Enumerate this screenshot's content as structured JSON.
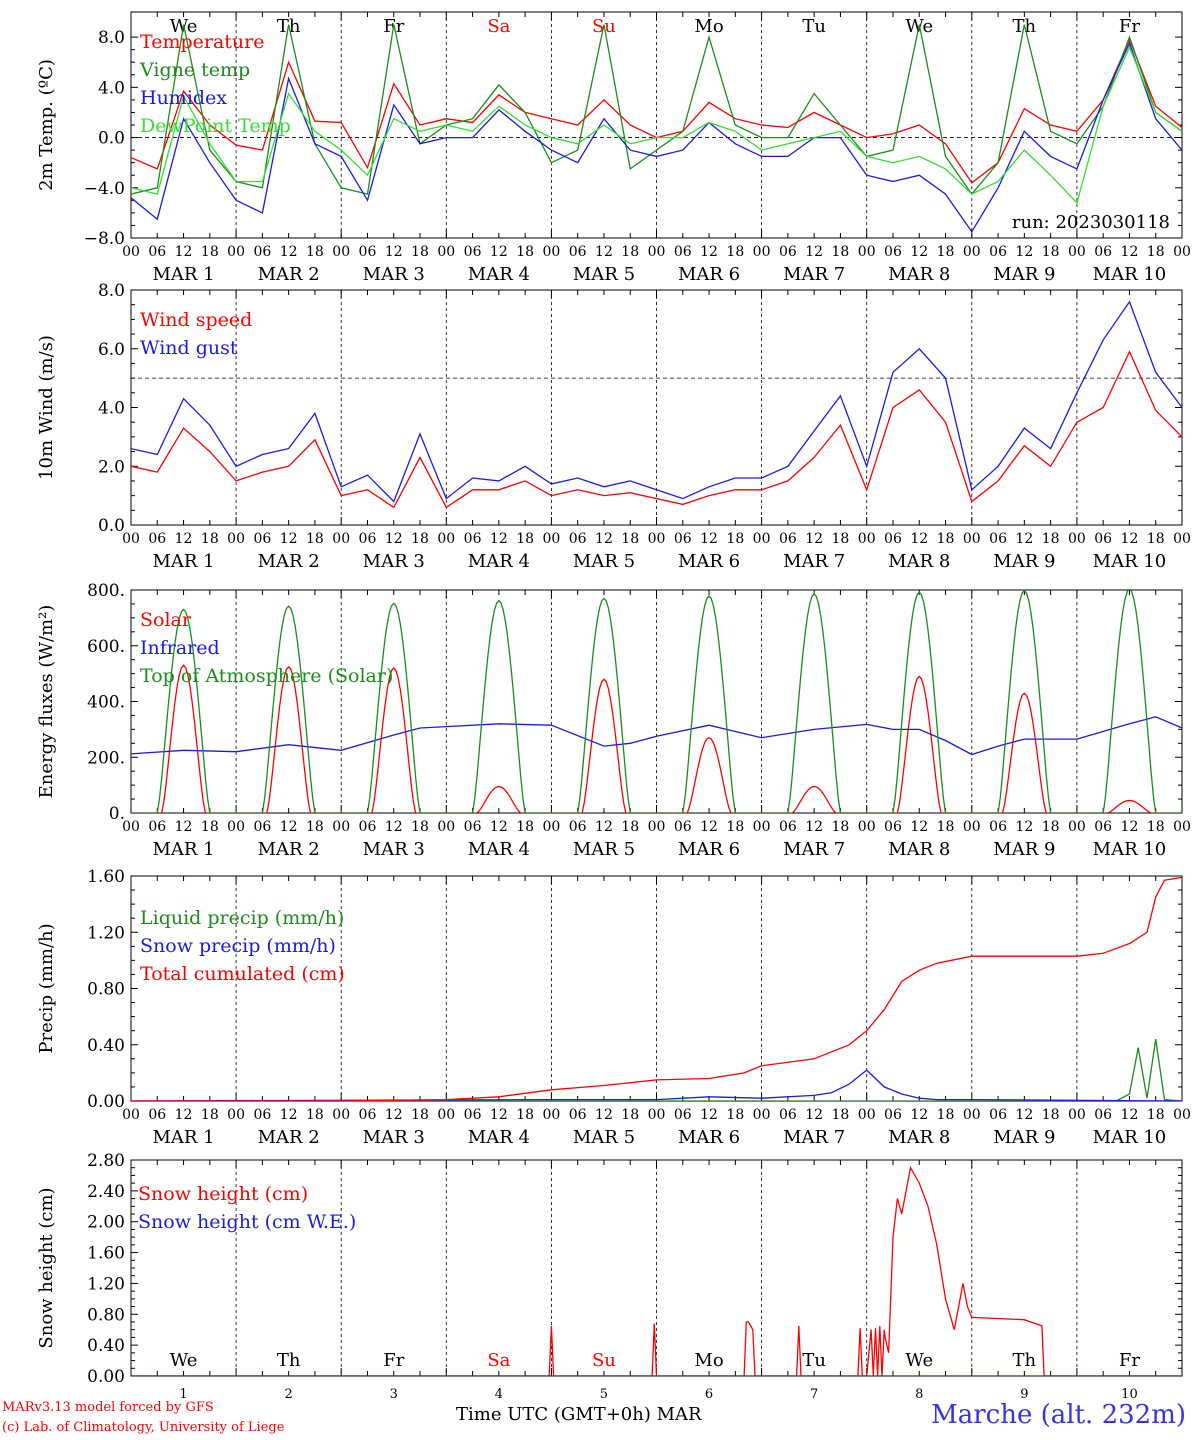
{
  "footer": {
    "model_line": "MARv3.13 model forced by GFS",
    "copyright_line": "(c) Lab. of Climatology, University of Liege",
    "xlabel": "Time UTC (GMT+0h) MAR",
    "station": "Marche (alt. 232m)"
  },
  "colors": {
    "red": "#ff0000",
    "blue": "#1a1ae6",
    "green": "#1a8c1a",
    "lightgreen": "#33dd33",
    "black": "#000000"
  },
  "chart_data": [
    {
      "type": "line",
      "ylabel": "2m Temp. (ºC)",
      "ylim": [
        -8,
        10
      ],
      "yticks": [
        -8,
        -4,
        0,
        4,
        8
      ],
      "ytick_labels": [
        "−8.0",
        "−4.0",
        "0.0",
        "4.0",
        "8.0"
      ],
      "ref_line": 0,
      "day_labels": [
        "We",
        "Th",
        "Fr",
        "Sa",
        "Su",
        "Mo",
        "Tu",
        "We",
        "Th",
        "Fr"
      ],
      "weekend_days": [
        3,
        4
      ],
      "date_labels": [
        "MAR  1",
        "MAR  2",
        "MAR  3",
        "MAR  4",
        "MAR  5",
        "MAR  6",
        "MAR  7",
        "MAR  8",
        "MAR  9",
        "MAR 10"
      ],
      "hour_labels": [
        "00",
        "06",
        "12",
        "18"
      ],
      "run_label": "run: 2023030118",
      "x_unit": "hours since 2023-03-01 00 UTC",
      "series": [
        {
          "name": "Temperature",
          "color": "red",
          "x": [
            0,
            6,
            12,
            18,
            24,
            30,
            36,
            42,
            48,
            54,
            60,
            66,
            72,
            78,
            84,
            90,
            96,
            102,
            108,
            114,
            120,
            126,
            132,
            138,
            144,
            150,
            156,
            162,
            168,
            174,
            180,
            186,
            192,
            198,
            204,
            210,
            216,
            222,
            228,
            234,
            240
          ],
          "values": [
            -1.6,
            -2.5,
            3.7,
            1.0,
            -0.6,
            -1.0,
            6.0,
            1.3,
            1.2,
            -2.4,
            4.3,
            1.0,
            1.5,
            1.2,
            3.4,
            2.0,
            1.5,
            1.0,
            3.0,
            1.0,
            0.0,
            0.5,
            2.8,
            1.5,
            1.0,
            0.8,
            2.0,
            1.0,
            0.0,
            0.3,
            1.0,
            -0.5,
            -3.6,
            -2.0,
            2.3,
            1.0,
            0.5,
            3.0,
            7.8,
            2.5,
            0.8
          ]
        },
        {
          "name": "Vigne temp",
          "color": "green",
          "x": [
            0,
            6,
            12,
            18,
            24,
            30,
            36,
            42,
            48,
            54,
            60,
            66,
            72,
            78,
            84,
            90,
            96,
            102,
            108,
            114,
            120,
            126,
            132,
            138,
            144,
            150,
            156,
            162,
            168,
            174,
            180,
            186,
            192,
            198,
            204,
            210,
            216,
            222,
            228,
            234,
            240
          ],
          "values": [
            -4.5,
            -4.0,
            9.0,
            -1.0,
            -3.5,
            -4.0,
            9.0,
            -0.5,
            -4.0,
            -4.5,
            9.0,
            -0.5,
            1.0,
            1.5,
            4.2,
            2.0,
            -2.0,
            -1.0,
            9.0,
            -2.5,
            -1.0,
            0.5,
            8.0,
            1.0,
            0.0,
            0.0,
            3.5,
            1.0,
            -1.5,
            -1.0,
            9.0,
            -1.5,
            -4.5,
            -2.0,
            9.0,
            0.5,
            -0.5,
            2.5,
            8.0,
            2.0,
            0.5
          ]
        },
        {
          "name": "Humidex",
          "color": "blue",
          "x": [
            0,
            6,
            12,
            18,
            24,
            30,
            36,
            42,
            48,
            54,
            60,
            66,
            72,
            78,
            84,
            90,
            96,
            102,
            108,
            114,
            120,
            126,
            132,
            138,
            144,
            150,
            156,
            162,
            168,
            174,
            180,
            186,
            192,
            198,
            204,
            210,
            216,
            222,
            228,
            234,
            240
          ],
          "values": [
            -4.8,
            -6.5,
            1.5,
            -2.0,
            -5.0,
            -6.0,
            4.7,
            -0.5,
            -1.5,
            -5.0,
            2.6,
            -0.5,
            0.0,
            0.0,
            2.2,
            0.5,
            -1.0,
            -2.0,
            1.5,
            -1.0,
            -1.5,
            -1.0,
            1.2,
            -0.5,
            -1.5,
            -1.5,
            0.0,
            0.0,
            -3.0,
            -3.5,
            -3.0,
            -4.5,
            -7.5,
            -4.0,
            0.5,
            -1.5,
            -2.5,
            3.0,
            7.5,
            1.5,
            -1.0
          ]
        },
        {
          "name": "DewPoint Temp",
          "color": "lightgreen",
          "x": [
            0,
            6,
            12,
            18,
            24,
            30,
            36,
            42,
            48,
            54,
            60,
            66,
            72,
            78,
            84,
            90,
            96,
            102,
            108,
            114,
            120,
            126,
            132,
            138,
            144,
            150,
            156,
            162,
            168,
            174,
            180,
            186,
            192,
            198,
            204,
            210,
            216,
            222,
            228,
            234,
            240
          ],
          "values": [
            -4.0,
            -4.5,
            3.3,
            -0.5,
            -3.5,
            -3.5,
            3.5,
            0.5,
            -1.0,
            -3.0,
            1.5,
            0.5,
            1.0,
            0.5,
            2.5,
            1.0,
            0.0,
            -0.5,
            1.0,
            -0.5,
            0.0,
            0.0,
            1.2,
            0.5,
            -1.0,
            -0.5,
            0.0,
            0.5,
            -1.5,
            -2.0,
            -1.5,
            -2.5,
            -4.5,
            -3.5,
            -1.0,
            -3.0,
            -5.2,
            2.5,
            7.2,
            2.0,
            0.5
          ]
        }
      ]
    },
    {
      "type": "line",
      "ylabel": "10m Wind (m/s)",
      "ylim": [
        0,
        8
      ],
      "yticks": [
        0,
        2,
        4,
        6,
        8
      ],
      "ytick_labels": [
        "0.0",
        "2.0",
        "4.0",
        "6.0",
        "8.0"
      ],
      "ref_line": 5,
      "date_labels": [
        "MAR  1",
        "MAR  2",
        "MAR  3",
        "MAR  4",
        "MAR  5",
        "MAR  6",
        "MAR  7",
        "MAR  8",
        "MAR  9",
        "MAR 10"
      ],
      "hour_labels": [
        "00",
        "06",
        "12",
        "18"
      ],
      "series": [
        {
          "name": "Wind speed",
          "color": "red",
          "x": [
            0,
            6,
            12,
            18,
            24,
            30,
            36,
            42,
            48,
            54,
            60,
            66,
            72,
            78,
            84,
            90,
            96,
            102,
            108,
            114,
            120,
            126,
            132,
            138,
            144,
            150,
            156,
            162,
            168,
            174,
            180,
            186,
            192,
            198,
            204,
            210,
            216,
            222,
            228,
            234,
            240
          ],
          "values": [
            2.0,
            1.8,
            3.3,
            2.5,
            1.5,
            1.8,
            2.0,
            2.9,
            1.0,
            1.2,
            0.6,
            2.3,
            0.6,
            1.2,
            1.2,
            1.5,
            1.0,
            1.2,
            1.0,
            1.1,
            0.9,
            0.7,
            1.0,
            1.2,
            1.2,
            1.5,
            2.3,
            3.4,
            1.2,
            4.0,
            4.6,
            3.5,
            0.8,
            1.5,
            2.7,
            2.0,
            3.5,
            4.0,
            5.9,
            3.9,
            3.0
          ]
        },
        {
          "name": "Wind gust",
          "color": "blue",
          "x": [
            0,
            6,
            12,
            18,
            24,
            30,
            36,
            42,
            48,
            54,
            60,
            66,
            72,
            78,
            84,
            90,
            96,
            102,
            108,
            114,
            120,
            126,
            132,
            138,
            144,
            150,
            156,
            162,
            168,
            174,
            180,
            186,
            192,
            198,
            204,
            210,
            216,
            222,
            228,
            234,
            240
          ],
          "values": [
            2.6,
            2.4,
            4.3,
            3.4,
            2.0,
            2.4,
            2.6,
            3.8,
            1.3,
            1.7,
            0.8,
            3.1,
            0.9,
            1.6,
            1.5,
            2.0,
            1.4,
            1.6,
            1.3,
            1.5,
            1.2,
            0.9,
            1.3,
            1.6,
            1.6,
            2.0,
            3.2,
            4.4,
            2.0,
            5.2,
            6.0,
            5.0,
            1.2,
            2.0,
            3.3,
            2.6,
            4.5,
            6.3,
            7.6,
            5.2,
            4.0
          ]
        }
      ]
    },
    {
      "type": "line",
      "ylabel": "Energy fluxes (W/m²)",
      "ylim": [
        0,
        800
      ],
      "yticks": [
        0,
        200,
        400,
        600,
        800
      ],
      "ytick_labels": [
        "0.",
        "200.",
        "400.",
        "600.",
        "800."
      ],
      "date_labels": [
        "MAR  1",
        "MAR  2",
        "MAR  3",
        "MAR  4",
        "MAR  5",
        "MAR  6",
        "MAR  7",
        "MAR  8",
        "MAR  9",
        "MAR 10"
      ],
      "hour_labels": [
        "00",
        "06",
        "12",
        "18"
      ],
      "solar_peaks": [
        530,
        525,
        520,
        95,
        480,
        270,
        95,
        490,
        430,
        45
      ],
      "toa_peaks": [
        730,
        742,
        752,
        762,
        770,
        778,
        786,
        792,
        798,
        804
      ],
      "series": [
        {
          "name": "Solar",
          "color": "red"
        },
        {
          "name": "Infrared",
          "color": "blue",
          "x": [
            0,
            12,
            24,
            36,
            48,
            60,
            66,
            72,
            84,
            96,
            108,
            114,
            120,
            132,
            144,
            156,
            168,
            174,
            180,
            186,
            192,
            198,
            204,
            216,
            228,
            234,
            240
          ],
          "values": [
            212,
            225,
            220,
            245,
            225,
            280,
            305,
            310,
            320,
            315,
            240,
            250,
            275,
            315,
            270,
            300,
            318,
            300,
            300,
            260,
            210,
            240,
            265,
            265,
            320,
            345,
            305
          ]
        },
        {
          "name": "Top of Atmosphere (Solar)",
          "color": "green"
        }
      ]
    },
    {
      "type": "line",
      "ylabel": "Precip (mm/h)",
      "ylim": [
        0,
        1.6
      ],
      "yticks": [
        0,
        0.4,
        0.8,
        1.2,
        1.6
      ],
      "ytick_labels": [
        "0.00",
        "0.40",
        "0.80",
        "1.20",
        "1.60"
      ],
      "date_labels": [
        "MAR  1",
        "MAR  2",
        "MAR  3",
        "MAR  4",
        "MAR  5",
        "MAR  6",
        "MAR  7",
        "MAR  8",
        "MAR  9",
        "MAR 10"
      ],
      "hour_labels": [
        "00",
        "06",
        "12",
        "18"
      ],
      "series": [
        {
          "name": "Liquid precip (mm/h)",
          "color": "green",
          "x": [
            0,
            225,
            228,
            230,
            232,
            234,
            236,
            240
          ],
          "values": [
            0,
            0,
            0.05,
            0.38,
            0.02,
            0.44,
            0.01,
            0
          ]
        },
        {
          "name": "Snow precip (mm/h)",
          "color": "blue",
          "x": [
            0,
            96,
            120,
            132,
            144,
            156,
            160,
            164,
            168,
            172,
            176,
            180,
            184,
            192,
            240
          ],
          "values": [
            0,
            0.01,
            0.01,
            0.03,
            0.02,
            0.04,
            0.06,
            0.12,
            0.22,
            0.1,
            0.05,
            0.02,
            0.01,
            0.01,
            0
          ]
        },
        {
          "name": "Total cumulated (cm)",
          "color": "red",
          "x": [
            0,
            48,
            72,
            84,
            96,
            108,
            120,
            132,
            140,
            144,
            156,
            164,
            168,
            172,
            176,
            180,
            184,
            192,
            204,
            216,
            222,
            228,
            232,
            234,
            236,
            240
          ],
          "values": [
            0,
            0,
            0.01,
            0.03,
            0.08,
            0.11,
            0.15,
            0.16,
            0.2,
            0.25,
            0.3,
            0.4,
            0.5,
            0.65,
            0.85,
            0.93,
            0.98,
            1.03,
            1.03,
            1.03,
            1.05,
            1.12,
            1.2,
            1.45,
            1.57,
            1.59
          ]
        }
      ]
    },
    {
      "type": "line",
      "ylabel": "Snow height (cm)",
      "ylim": [
        0,
        2.8
      ],
      "yticks": [
        0,
        0.4,
        0.8,
        1.2,
        1.6,
        2.0,
        2.4,
        2.8
      ],
      "ytick_labels": [
        "0.00",
        "0.40",
        "0.80",
        "1.20",
        "1.60",
        "2.00",
        "2.40",
        "2.80"
      ],
      "day_labels": [
        "We",
        "Th",
        "Fr",
        "Sa",
        "Su",
        "Mo",
        "Tu",
        "We",
        "Th",
        "Fr"
      ],
      "weekend_days": [
        3,
        4
      ],
      "x_day_numbers": [
        "1",
        "2",
        "3",
        "4",
        "5",
        "6",
        "7",
        "8",
        "9",
        "10"
      ],
      "series": [
        {
          "name": "Snow height (cm)",
          "color": "red",
          "x": [
            0,
            95.5,
            96,
            96.5,
            119,
            119.5,
            120,
            140,
            140.5,
            141,
            142,
            142.5,
            143,
            152,
            152.5,
            153,
            166,
            166.5,
            167,
            168,
            169,
            169.5,
            170,
            170.5,
            171,
            171.5,
            172,
            172.2,
            173,
            174,
            175,
            176,
            178,
            180,
            182,
            184,
            186,
            188,
            190,
            191,
            192,
            196,
            204,
            208,
            208.5,
            209,
            240
          ],
          "values": [
            0,
            0,
            0.65,
            0,
            0,
            0.68,
            0,
            0,
            0.7,
            0.7,
            0.6,
            0,
            0,
            0,
            0.65,
            0,
            0,
            0.62,
            0,
            0,
            0.6,
            0,
            0.62,
            0,
            0.65,
            0,
            0.6,
            0.5,
            0.3,
            1.8,
            2.3,
            2.1,
            2.7,
            2.5,
            2.2,
            1.7,
            1.0,
            0.6,
            1.2,
            0.9,
            0.76,
            0.75,
            0.73,
            0.65,
            0,
            0,
            0
          ]
        },
        {
          "name": "Snow height (cm W.E.)",
          "color": "blue",
          "x": [
            0,
            240
          ],
          "values": [
            0,
            0
          ]
        }
      ]
    }
  ]
}
